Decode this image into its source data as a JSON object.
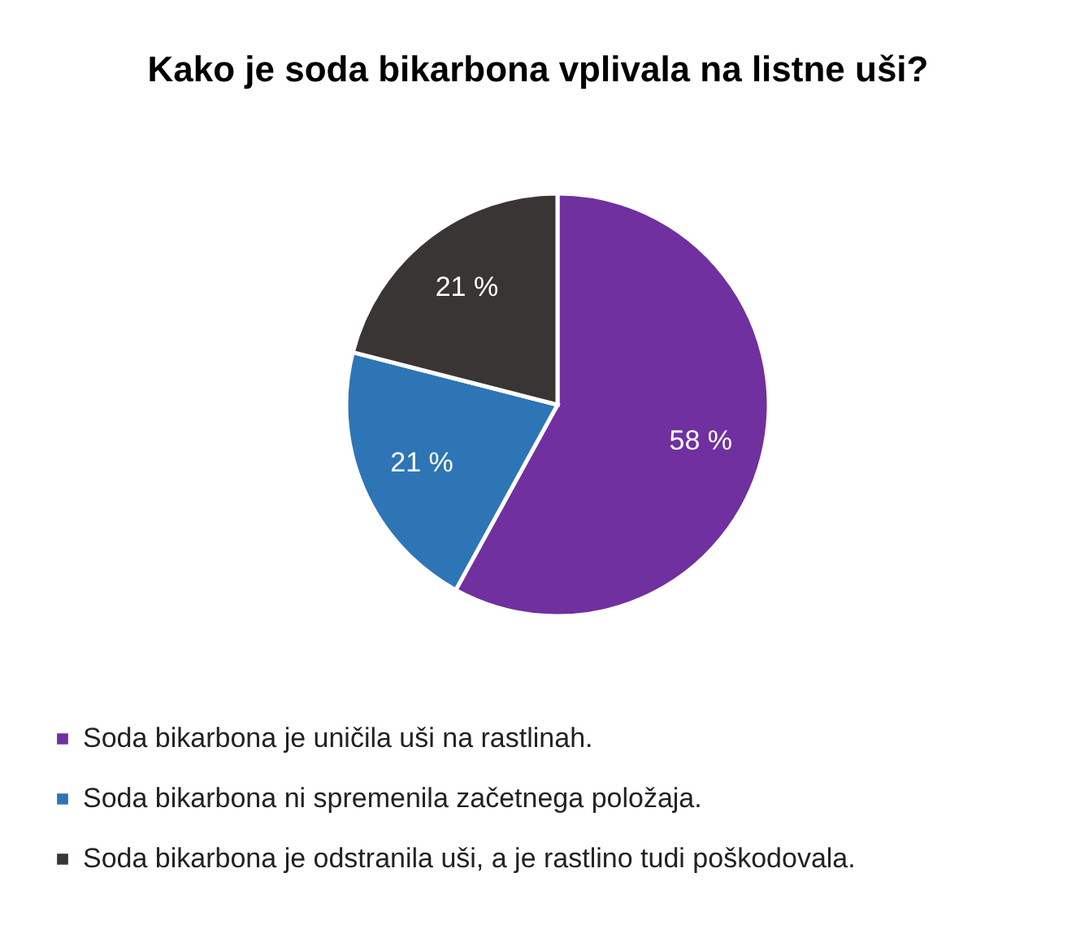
{
  "chart_data": {
    "type": "pie",
    "title": "Kako je soda bikarbona vplivala na listne uši?",
    "categories": [
      "Soda bikarbona je uničila uši na rastlinah.",
      "Soda bikarbona ni spremenila začetnega položaja.",
      "Soda bikarbona je odstranila uši, a je rastlino tudi poškodovala."
    ],
    "values": [
      58,
      21,
      21
    ],
    "colors": [
      "#7030a0",
      "#2e75b6",
      "#3a3535"
    ],
    "value_labels": [
      "58 %",
      "21 %",
      "21 %"
    ],
    "legend": "bottom"
  }
}
